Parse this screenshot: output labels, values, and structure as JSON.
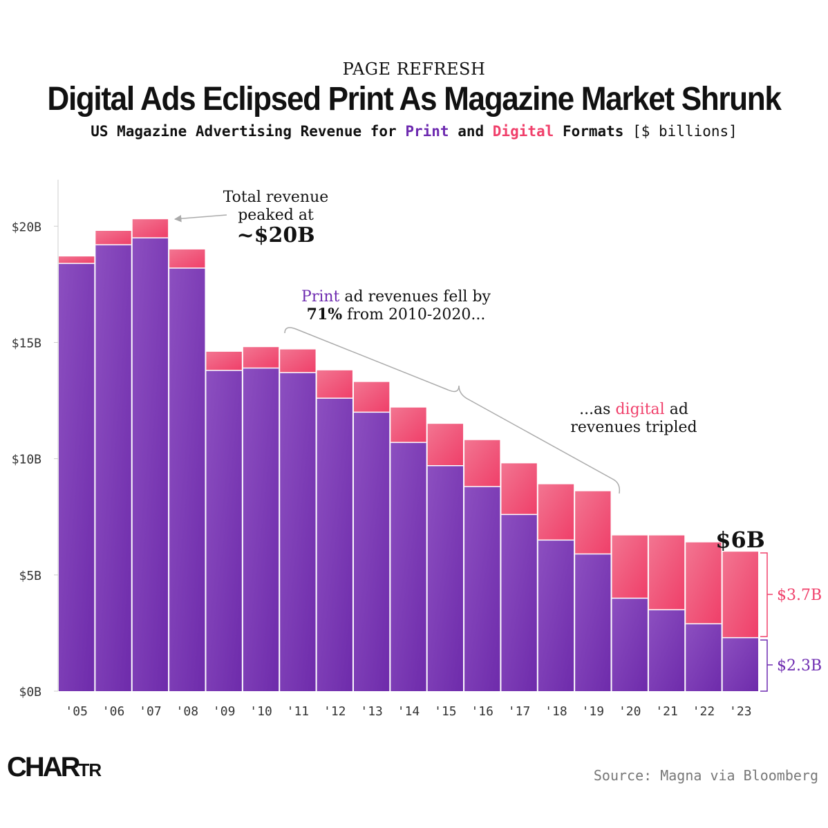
{
  "header": {
    "kicker": "PAGE REFRESH",
    "title": "Digital Ads Eclipsed Print As Magazine Market Shrunk",
    "subtitle_lead": "US Magazine Advertising Revenue for ",
    "subtitle_print": "Print",
    "subtitle_and": " and ",
    "subtitle_digital": "Digital",
    "subtitle_formats": " Formats ",
    "subtitle_unit": "[$ billions]"
  },
  "chart_data": {
    "type": "bar",
    "stacked": true,
    "categories": [
      "'05",
      "'06",
      "'07",
      "'08",
      "'09",
      "'10",
      "'11",
      "'12",
      "'13",
      "'14",
      "'15",
      "'16",
      "'17",
      "'18",
      "'19",
      "'20",
      "'21",
      "'22",
      "'23"
    ],
    "series": [
      {
        "name": "Print",
        "color": "#7a35b4",
        "values": [
          18.4,
          19.2,
          19.5,
          18.2,
          13.8,
          13.9,
          13.7,
          12.6,
          12.0,
          10.7,
          9.7,
          8.8,
          7.6,
          6.5,
          5.9,
          4.0,
          3.5,
          2.9,
          2.3
        ]
      },
      {
        "name": "Digital",
        "color": "#f0406b",
        "values": [
          0.3,
          0.6,
          0.8,
          0.8,
          0.8,
          0.9,
          1.0,
          1.2,
          1.3,
          1.5,
          1.8,
          2.0,
          2.2,
          2.4,
          2.7,
          2.7,
          3.2,
          3.5,
          3.7
        ]
      }
    ],
    "ylim": [
      0,
      22
    ],
    "yticks": [
      0,
      5,
      10,
      15,
      20
    ],
    "ytick_labels": [
      "$0B",
      "$5B",
      "$10B",
      "$15B",
      "$20B"
    ],
    "annotations": {
      "peak_line1": "Total revenue",
      "peak_line2": "peaked at",
      "peak_value": "~$20B",
      "print_fall_word": "Print",
      "print_fall_rest": " ad revenues fell by",
      "print_fall_pct": "71%",
      "print_fall_range": " from 2010-2020...",
      "digital_pre": "...as ",
      "digital_word": "digital",
      "digital_post": " ad",
      "digital_line2": "revenues tripled",
      "total_2023": "$6B",
      "digital_2023": "$3.7B",
      "print_2023": "$2.3B"
    }
  },
  "colors": {
    "print_light": "#8c4fc0",
    "print_dark": "#6e2bab",
    "digital_light": "#f27591",
    "digital_dark": "#ef3f69",
    "print_text": "#6e2bb0",
    "digital_text": "#f0406b"
  },
  "footer": {
    "logo_big": "CHAR",
    "logo_small": "TR",
    "source": "Source: Magna via Bloomberg"
  }
}
